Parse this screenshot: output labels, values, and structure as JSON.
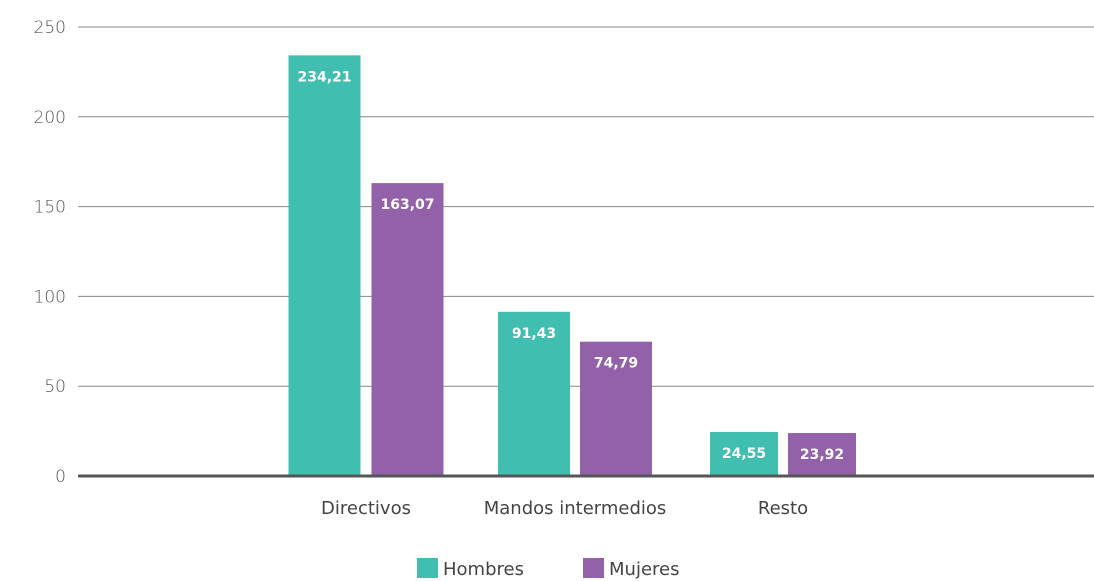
{
  "chart_data": {
    "type": "bar",
    "categories": [
      "Directivos",
      "Mandos intermedios",
      "Resto"
    ],
    "series": [
      {
        "name": "Hombres",
        "color": "#40bfb0",
        "values": [
          234.21,
          91.43,
          24.55
        ],
        "labels": [
          "234,21",
          "91,43",
          "24,55"
        ]
      },
      {
        "name": "Mujeres",
        "color": "#9261aa",
        "values": [
          163.07,
          74.79,
          23.92
        ],
        "labels": [
          "163,07",
          "74,79",
          "23,92"
        ]
      }
    ],
    "yticks": [
      0,
      50,
      100,
      150,
      200,
      250
    ],
    "ytick_labels": [
      "0",
      "50",
      "100",
      "150",
      "200",
      "250"
    ],
    "ylim": [
      0,
      250
    ],
    "grid": true,
    "legend_position": "bottom"
  }
}
